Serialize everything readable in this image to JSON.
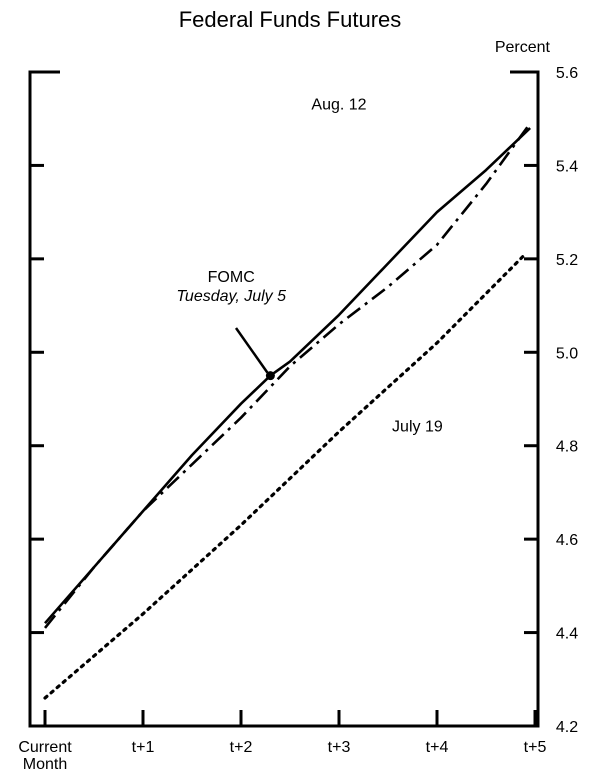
{
  "chart_data": {
    "type": "line",
    "title": "Federal Funds Futures",
    "ylabel": "Percent",
    "xlabel": "",
    "categories": [
      "Current Month",
      "t+1",
      "t+2",
      "t+3",
      "t+4",
      "t+5"
    ],
    "x_tick_labels": [
      [
        "Current",
        "Month"
      ],
      [
        "t+1"
      ],
      [
        "t+2"
      ],
      [
        "t+3"
      ],
      [
        "t+4"
      ],
      [
        "t+5"
      ]
    ],
    "ylim": [
      4.2,
      5.6
    ],
    "y_ticks": [
      4.2,
      4.4,
      4.6,
      4.8,
      5.0,
      5.2,
      5.4,
      5.6
    ],
    "y_tick_labels": [
      "4.2",
      "4.4",
      "4.6",
      "4.8",
      "5.0",
      "5.2",
      "5.4",
      "5.6"
    ],
    "grid": false,
    "series": [
      {
        "name": "",
        "style": "solid",
        "x": [
          0,
          0.5,
          1,
          1.5,
          2,
          2.3,
          2.5,
          3,
          3.5,
          4,
          4.5,
          4.95
        ],
        "y": [
          4.42,
          4.54,
          4.66,
          4.78,
          4.89,
          4.95,
          4.98,
          5.08,
          5.19,
          5.3,
          5.39,
          5.48
        ]
      },
      {
        "name": "Aug. 12",
        "style": "dashdot",
        "x": [
          0,
          0.5,
          1,
          1.5,
          2,
          2.5,
          3,
          3.5,
          4,
          4.5,
          4.95
        ],
        "y": [
          4.41,
          4.54,
          4.66,
          4.76,
          4.86,
          4.97,
          5.06,
          5.14,
          5.23,
          5.36,
          5.49
        ]
      },
      {
        "name": "July 19",
        "style": "dotted",
        "x": [
          0,
          1,
          2,
          3,
          4,
          4.9
        ],
        "y": [
          4.26,
          4.44,
          4.63,
          4.83,
          5.02,
          5.21
        ]
      }
    ],
    "annotations": [
      {
        "text": "Aug. 12",
        "x": 3.0,
        "y": 5.52
      },
      {
        "text": "July 19",
        "x": 3.8,
        "y": 4.83
      },
      {
        "text": "FOMC",
        "x": 1.9,
        "y": 5.15,
        "style": "normal"
      },
      {
        "text": "Tuesday, July 5",
        "x": 1.9,
        "y": 5.11,
        "style": "italic"
      }
    ],
    "event_marker": {
      "label": "FOMC",
      "x": 2.3,
      "y": 4.95
    }
  }
}
